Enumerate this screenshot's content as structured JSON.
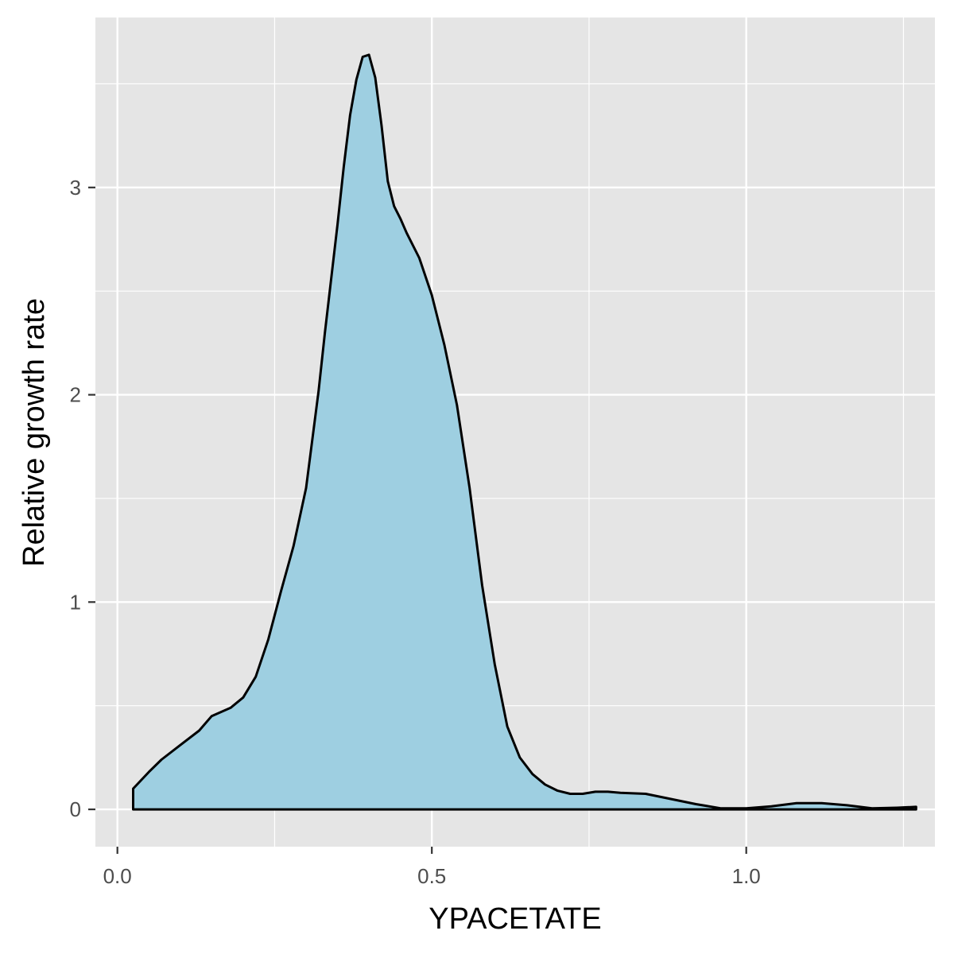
{
  "chart_data": {
    "type": "area",
    "subtype": "density",
    "xlabel": "YPACETATE",
    "ylabel": "Relative growth rate",
    "xlim": [
      -0.035,
      1.3
    ],
    "ylim": [
      -0.18,
      3.82
    ],
    "x_ticks": [
      0.0,
      0.5,
      1.0
    ],
    "x_tick_labels": [
      "0.0",
      "0.5",
      "1.0"
    ],
    "y_ticks": [
      0,
      1,
      2,
      3
    ],
    "y_tick_labels": [
      "0",
      "1",
      "2",
      "3"
    ],
    "grid": true,
    "legend": "none",
    "colors": {
      "panel_background": "#e5e5e5",
      "grid": "#ffffff",
      "fill": "#9ecfe1",
      "outline": "#000000",
      "tick_label": "#4d4d4d",
      "axis_title": "#000000"
    },
    "series": [
      {
        "x": [
          0.025,
          0.05,
          0.07,
          0.1,
          0.13,
          0.15,
          0.18,
          0.2,
          0.22,
          0.24,
          0.26,
          0.28,
          0.3,
          0.32,
          0.33,
          0.35,
          0.36,
          0.37,
          0.38,
          0.39,
          0.4,
          0.41,
          0.42,
          0.43,
          0.44,
          0.45,
          0.46,
          0.48,
          0.5,
          0.52,
          0.54,
          0.56,
          0.58,
          0.6,
          0.62,
          0.64,
          0.66,
          0.68,
          0.7,
          0.72,
          0.74,
          0.76,
          0.78,
          0.8,
          0.84,
          0.88,
          0.92,
          0.96,
          1.0,
          1.04,
          1.08,
          1.12,
          1.16,
          1.2,
          1.24,
          1.27
        ],
        "y": [
          0.1,
          0.18,
          0.24,
          0.31,
          0.38,
          0.45,
          0.49,
          0.54,
          0.64,
          0.82,
          1.05,
          1.27,
          1.55,
          2.02,
          2.3,
          2.82,
          3.1,
          3.35,
          3.52,
          3.63,
          3.64,
          3.53,
          3.3,
          3.03,
          2.91,
          2.85,
          2.78,
          2.66,
          2.48,
          2.24,
          1.95,
          1.55,
          1.08,
          0.7,
          0.4,
          0.25,
          0.17,
          0.12,
          0.09,
          0.075,
          0.075,
          0.085,
          0.085,
          0.08,
          0.075,
          0.05,
          0.025,
          0.005,
          0.005,
          0.015,
          0.03,
          0.03,
          0.02,
          0.005,
          0.008,
          0.012
        ]
      }
    ]
  }
}
